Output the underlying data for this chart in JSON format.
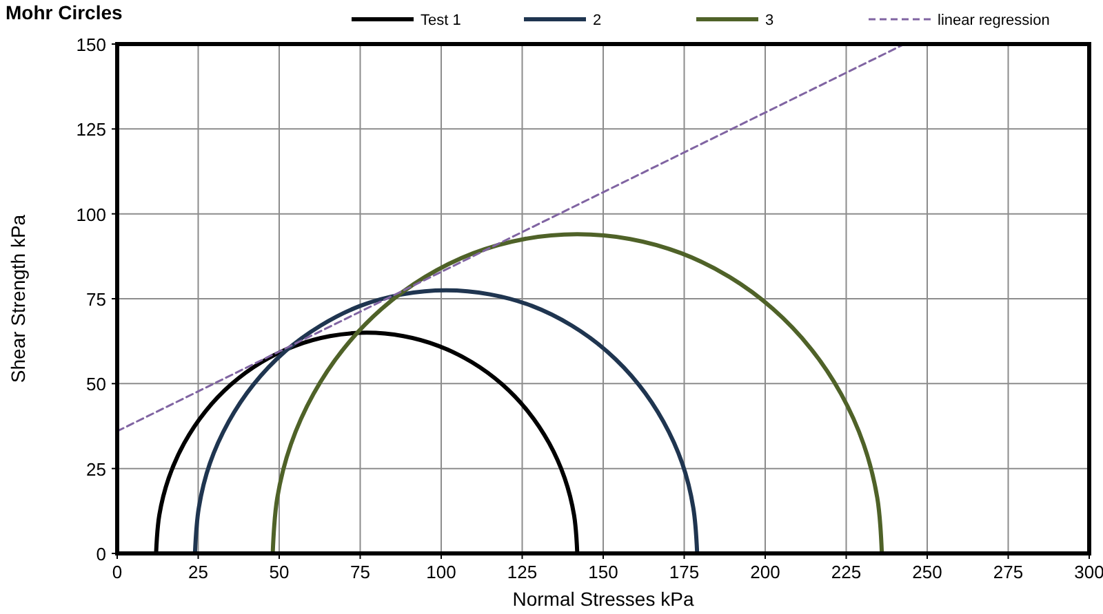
{
  "chart_data": {
    "type": "line",
    "title": "Mohr Circles",
    "xlabel": "Normal Stresses  kPa",
    "ylabel": "Shear Strength  kPa",
    "xlim": [
      0,
      300
    ],
    "ylim": [
      0,
      150
    ],
    "xticks": [
      0,
      25,
      50,
      75,
      100,
      125,
      150,
      175,
      200,
      225,
      250,
      275,
      300
    ],
    "yticks": [
      0,
      25,
      50,
      75,
      100,
      125,
      150
    ],
    "grid": true,
    "legend": "top",
    "marker": "none",
    "series": [
      {
        "name": "Test 1",
        "color": "#000000",
        "line_style": "solid",
        "x": [
          12,
          13.0,
          15.9,
          20.7,
          27.2,
          35.2,
          44.5,
          54.8,
          65.7,
          77,
          88.3,
          99.2,
          109.5,
          118.8,
          126.8,
          133.3,
          138.1,
          141.0,
          142
        ],
        "values": [
          0,
          11.3,
          22.2,
          32.5,
          41.8,
          49.8,
          56.3,
          61.1,
          64.0,
          65,
          64.0,
          61.1,
          56.3,
          49.8,
          41.8,
          32.5,
          22.2,
          11.3,
          0
        ]
      },
      {
        "name": "2",
        "color": "#1f3550",
        "line_style": "solid",
        "x": [
          24,
          25.2,
          28.6,
          34.4,
          42.1,
          51.7,
          62.8,
          75.0,
          88.0,
          101.5,
          115.0,
          128.0,
          140.3,
          151.3,
          160.9,
          168.6,
          174.4,
          177.8,
          179
        ],
        "values": [
          0,
          13.5,
          26.5,
          38.8,
          49.8,
          59.4,
          67.1,
          72.9,
          76.3,
          77.5,
          76.3,
          72.9,
          67.1,
          59.4,
          49.8,
          38.8,
          26.5,
          13.5,
          0
        ]
      },
      {
        "name": "3",
        "color": "#4f6228",
        "line_style": "solid",
        "x": [
          48,
          49.4,
          53.6,
          60.6,
          70.0,
          81.6,
          95,
          109.9,
          125.7,
          142,
          158.3,
          174.1,
          189,
          202.4,
          214,
          223.4,
          230.4,
          234.6,
          236
        ],
        "values": [
          0,
          16.3,
          32.1,
          47,
          60.4,
          72,
          81.4,
          88.4,
          92.6,
          94,
          92.6,
          88.4,
          81.4,
          72,
          60.4,
          47,
          32.1,
          16.3,
          0
        ]
      },
      {
        "name": "linear regression",
        "color": "#8064a2",
        "line_style": "dashed",
        "x": [
          0,
          243
        ],
        "values": [
          36,
          150
        ]
      }
    ]
  }
}
